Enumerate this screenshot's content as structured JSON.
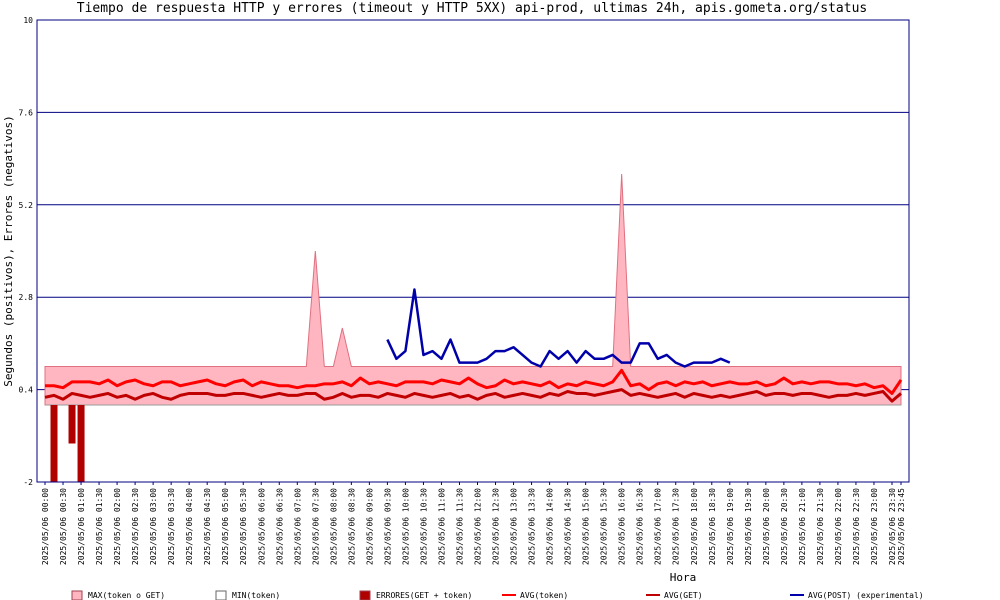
{
  "chart_data": {
    "type": "combo",
    "title": "Tiempo de respuesta HTTP y errores (timeout y HTTP 5XX) api-prod, ultimas 24h, apis.gometa.org/status",
    "ylabel": "Segundos (positivos), Errores (negativos)",
    "xlabel": "Hora",
    "ylim": [
      -2,
      10
    ],
    "yticks": [
      -2,
      0.4,
      2.8,
      5.2,
      7.6,
      10
    ],
    "grid": true,
    "legend": "bottom",
    "categories": [
      "2025/05/06 00:00",
      null,
      "2025/05/06 00:30",
      null,
      "2025/05/06 01:00",
      null,
      "2025/05/06 01:30",
      null,
      "2025/05/06 02:00",
      null,
      "2025/05/06 02:30",
      null,
      "2025/05/06 03:00",
      null,
      "2025/05/06 03:30",
      null,
      "2025/05/06 04:00",
      null,
      "2025/05/06 04:30",
      null,
      "2025/05/06 05:00",
      null,
      "2025/05/06 05:30",
      null,
      "2025/05/06 06:00",
      null,
      "2025/05/06 06:30",
      null,
      "2025/05/06 07:00",
      null,
      "2025/05/06 07:30",
      null,
      "2025/05/06 08:00",
      null,
      "2025/05/06 08:30",
      null,
      "2025/05/06 09:00",
      null,
      "2025/05/06 09:30",
      null,
      "2025/05/06 10:00",
      null,
      "2025/05/06 10:30",
      null,
      "2025/05/06 11:00",
      null,
      "2025/05/06 11:30",
      null,
      "2025/05/06 12:00",
      null,
      "2025/05/06 12:30",
      null,
      "2025/05/06 13:00",
      null,
      "2025/05/06 13:30",
      null,
      "2025/05/06 14:00",
      null,
      "2025/05/06 14:30",
      null,
      "2025/05/06 15:00",
      null,
      "2025/05/06 15:30",
      null,
      "2025/05/06 16:00",
      null,
      "2025/05/06 16:30",
      null,
      "2025/05/06 17:00",
      null,
      "2025/05/06 17:30",
      null,
      "2025/05/06 18:00",
      null,
      "2025/05/06 18:30",
      null,
      "2025/05/06 19:00",
      null,
      "2025/05/06 19:30",
      null,
      "2025/05/06 20:00",
      null,
      "2025/05/06 20:30",
      null,
      "2025/05/06 21:00",
      null,
      "2025/05/06 21:30",
      null,
      "2025/05/06 22:00",
      null,
      "2025/05/06 22:30",
      null,
      "2025/05/06 23:00",
      null,
      "2025/05/06 23:30",
      "2025/05/06 23:45"
    ],
    "series": [
      {
        "name": "MAX(token o GET)",
        "type": "area",
        "color": "#ffb6c1",
        "values": [
          1,
          1,
          1,
          1,
          1,
          1,
          1,
          1,
          1,
          1,
          1,
          1,
          1,
          1,
          1,
          1,
          1,
          1,
          1,
          1,
          1,
          1,
          1,
          1,
          1,
          1,
          1,
          1,
          1,
          1,
          4,
          1,
          1,
          2,
          1,
          1,
          1,
          1,
          1,
          1,
          1,
          1,
          1,
          1,
          1,
          1,
          1,
          1,
          1,
          1,
          1,
          1,
          1,
          1,
          1,
          1,
          1,
          1,
          1,
          1,
          1,
          1,
          1,
          1,
          6,
          1,
          1,
          1,
          1,
          1,
          1,
          1,
          1,
          1,
          1,
          1,
          1,
          1,
          1,
          1,
          1,
          1,
          1,
          1,
          1,
          1,
          1,
          1,
          1,
          1,
          1,
          1,
          1,
          1,
          1,
          1
        ]
      },
      {
        "name": "MIN(token)",
        "type": "area",
        "color": "#ffffff",
        "values": [
          0,
          0,
          0,
          0,
          0,
          0,
          0,
          0,
          0,
          0,
          0,
          0,
          0,
          0,
          0,
          0,
          0,
          0,
          0,
          0,
          0,
          0,
          0,
          0,
          0,
          0,
          0,
          0,
          0,
          0,
          0,
          0,
          0,
          0,
          0,
          0,
          0,
          0,
          0,
          0,
          0,
          0,
          0,
          0,
          0,
          0,
          0,
          0,
          0,
          0,
          0,
          0,
          0,
          0,
          0,
          0,
          0,
          0,
          0,
          0,
          0,
          0,
          0,
          0,
          0,
          0,
          0,
          0,
          0,
          0,
          0,
          0,
          0,
          0,
          0,
          0,
          0,
          0,
          0,
          0,
          0,
          0,
          0,
          0,
          0,
          0,
          0,
          0,
          0,
          0,
          0,
          0,
          0,
          0,
          0,
          0
        ]
      },
      {
        "name": "ERRORES(GET + token)",
        "type": "bar",
        "color": "#b00000",
        "values": [
          0,
          -2,
          0,
          -1,
          -2,
          0,
          0,
          0,
          0,
          0,
          0,
          0,
          0,
          0,
          0,
          0,
          0,
          0,
          0,
          0,
          0,
          0,
          0,
          0,
          0,
          0,
          0,
          0,
          0,
          0,
          0,
          0,
          0,
          0,
          0,
          0,
          0,
          0,
          0,
          0,
          0,
          0,
          0,
          0,
          0,
          0,
          0,
          0,
          0,
          0,
          0,
          0,
          0,
          0,
          0,
          0,
          0,
          0,
          0,
          0,
          0,
          0,
          0,
          0,
          0,
          0,
          0,
          0,
          0,
          0,
          0,
          0,
          0,
          0,
          0,
          0,
          0,
          0,
          0,
          0,
          0,
          0,
          0,
          0,
          0,
          0,
          0,
          0,
          0,
          0,
          0,
          0,
          0,
          0,
          0,
          0
        ]
      },
      {
        "name": "AVG(token)",
        "type": "line",
        "color": "#ff0000",
        "values": [
          0.5,
          0.5,
          0.45,
          0.6,
          0.6,
          0.6,
          0.55,
          0.65,
          0.5,
          0.6,
          0.65,
          0.55,
          0.5,
          0.6,
          0.6,
          0.5,
          0.55,
          0.6,
          0.65,
          0.55,
          0.5,
          0.6,
          0.65,
          0.5,
          0.6,
          0.55,
          0.5,
          0.5,
          0.45,
          0.5,
          0.5,
          0.55,
          0.55,
          0.6,
          0.5,
          0.7,
          0.55,
          0.6,
          0.55,
          0.5,
          0.6,
          0.6,
          0.6,
          0.55,
          0.65,
          0.6,
          0.55,
          0.7,
          0.55,
          0.45,
          0.5,
          0.65,
          0.55,
          0.6,
          0.55,
          0.5,
          0.6,
          0.45,
          0.55,
          0.5,
          0.6,
          0.55,
          0.5,
          0.6,
          0.9,
          0.5,
          0.55,
          0.4,
          0.55,
          0.6,
          0.5,
          0.6,
          0.55,
          0.6,
          0.5,
          0.55,
          0.6,
          0.55,
          0.55,
          0.6,
          0.5,
          0.55,
          0.7,
          0.55,
          0.6,
          0.55,
          0.6,
          0.6,
          0.55,
          0.55,
          0.5,
          0.55,
          0.45,
          0.5,
          0.3,
          0.65
        ]
      },
      {
        "name": "AVG(GET)",
        "type": "line",
        "color": "#c00000",
        "values": [
          0.2,
          0.25,
          0.15,
          0.3,
          0.25,
          0.2,
          0.25,
          0.3,
          0.2,
          0.25,
          0.15,
          0.25,
          0.3,
          0.2,
          0.15,
          0.25,
          0.3,
          0.3,
          0.3,
          0.25,
          0.25,
          0.3,
          0.3,
          0.25,
          0.2,
          0.25,
          0.3,
          0.25,
          0.25,
          0.3,
          0.3,
          0.15,
          0.2,
          0.3,
          0.2,
          0.25,
          0.25,
          0.2,
          0.3,
          0.25,
          0.2,
          0.3,
          0.25,
          0.2,
          0.25,
          0.3,
          0.2,
          0.25,
          0.15,
          0.25,
          0.3,
          0.2,
          0.25,
          0.3,
          0.25,
          0.2,
          0.3,
          0.25,
          0.35,
          0.3,
          0.3,
          0.25,
          0.3,
          0.35,
          0.4,
          0.25,
          0.3,
          0.25,
          0.2,
          0.25,
          0.3,
          0.2,
          0.3,
          0.25,
          0.2,
          0.25,
          0.2,
          0.25,
          0.3,
          0.35,
          0.25,
          0.3,
          0.3,
          0.25,
          0.3,
          0.3,
          0.25,
          0.2,
          0.25,
          0.25,
          0.3,
          0.25,
          0.3,
          0.35,
          0.1,
          0.3
        ]
      },
      {
        "name": "AVG(POST) (experimental)",
        "type": "line",
        "color": "#0000aa",
        "values": [
          null,
          null,
          null,
          null,
          null,
          null,
          null,
          null,
          null,
          null,
          null,
          null,
          null,
          null,
          null,
          null,
          null,
          null,
          null,
          null,
          null,
          null,
          null,
          null,
          null,
          null,
          null,
          null,
          null,
          null,
          null,
          null,
          null,
          null,
          null,
          null,
          null,
          null,
          1.7,
          1.2,
          1.4,
          3,
          1.3,
          1.4,
          1.2,
          1.7,
          1.1,
          1.1,
          1.1,
          1.2,
          1.4,
          1.4,
          1.5,
          1.3,
          1.1,
          1.0,
          1.4,
          1.2,
          1.4,
          1.1,
          1.4,
          1.2,
          1.2,
          1.3,
          1.1,
          1.1,
          1.6,
          1.6,
          1.2,
          1.3,
          1.1,
          1.0,
          1.1,
          1.1,
          1.1,
          1.2,
          1.1,
          null,
          null,
          null,
          null,
          null,
          null,
          null,
          null,
          null,
          null,
          null,
          null,
          null,
          null,
          null,
          null,
          null,
          null,
          null
        ]
      }
    ]
  }
}
